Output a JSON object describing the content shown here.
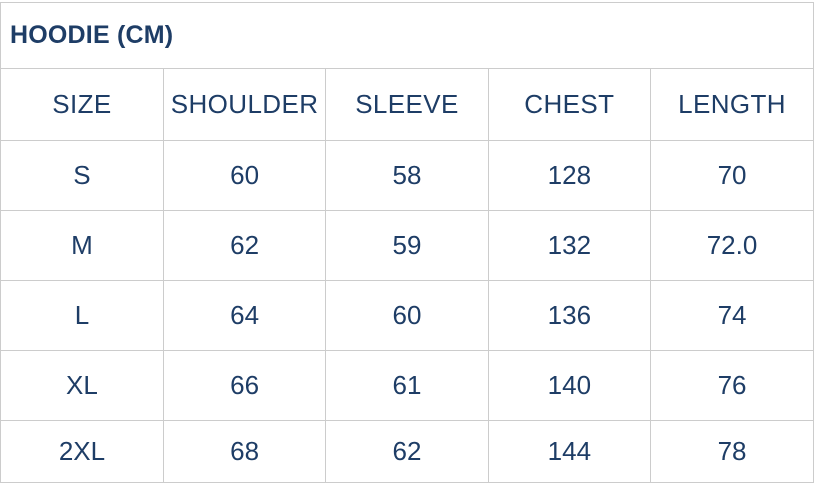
{
  "title": "HOODIE (CM)",
  "colors": {
    "text": "#1e3d66",
    "border": "#cccccc",
    "background": "#ffffff"
  },
  "chart_data": {
    "type": "table",
    "title": "HOODIE (CM)",
    "columns": [
      "SIZE",
      "SHOULDER",
      "SLEEVE",
      "CHEST",
      "LENGTH"
    ],
    "rows": [
      [
        "S",
        "60",
        "58",
        "128",
        "70"
      ],
      [
        "M",
        "62",
        "59",
        "132",
        "72.0"
      ],
      [
        "L",
        "64",
        "60",
        "136",
        "74"
      ],
      [
        "XL",
        "66",
        "61",
        "140",
        "76"
      ],
      [
        "2XL",
        "68",
        "62",
        "144",
        "78"
      ]
    ],
    "units": "cm",
    "layout": {
      "grid": true,
      "header_row": true,
      "column_alignment": "center"
    }
  }
}
